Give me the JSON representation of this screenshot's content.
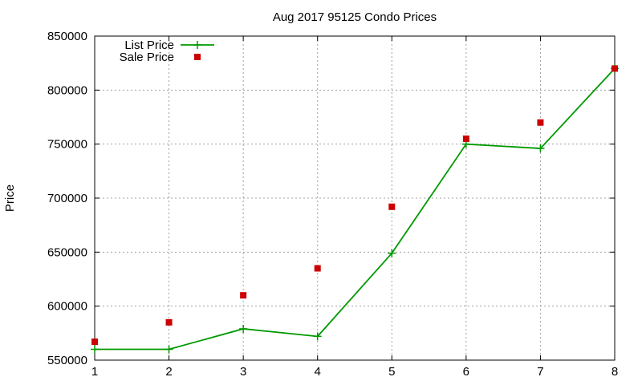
{
  "chart_data": {
    "type": "line",
    "title": "Aug 2017 95125 Condo Prices",
    "xlabel": "",
    "ylabel": "Price",
    "xlim": [
      1,
      8
    ],
    "ylim": [
      550000,
      850000
    ],
    "x": [
      1,
      2,
      3,
      4,
      5,
      6,
      7,
      8
    ],
    "x_ticks": [
      "1",
      "2",
      "3",
      "4",
      "5",
      "6",
      "7",
      "8"
    ],
    "y_ticks": [
      "550000",
      "600000",
      "650000",
      "700000",
      "750000",
      "800000",
      "850000"
    ],
    "grid": true,
    "legend_position": "top-left",
    "series": [
      {
        "name": "List Price",
        "style": "line-with-plus-markers",
        "color": "#009900",
        "values": [
          560000,
          560000,
          579000,
          572000,
          649000,
          750000,
          746000,
          820000
        ]
      },
      {
        "name": "Sale Price",
        "style": "square-markers",
        "color": "#cc0000",
        "values": [
          567000,
          585000,
          610000,
          635000,
          692000,
          755000,
          770000,
          820000
        ]
      }
    ]
  }
}
